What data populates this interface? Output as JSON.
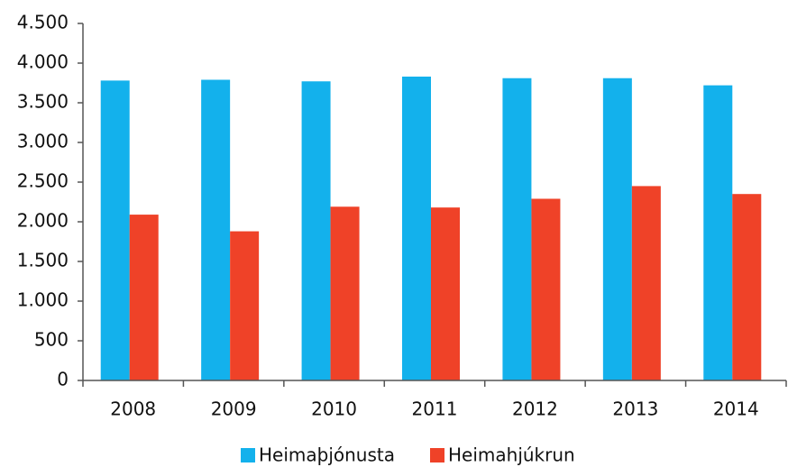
{
  "chart_data": {
    "type": "bar",
    "categories": [
      "2008",
      "2009",
      "2010",
      "2011",
      "2012",
      "2013",
      "2014"
    ],
    "series": [
      {
        "name": "Heimaþjónusta",
        "color": "#13b1ec",
        "values": [
          3780,
          3790,
          3770,
          3830,
          3810,
          3810,
          3720
        ]
      },
      {
        "name": "Heimahjúkrun",
        "color": "#ef4228",
        "values": [
          2090,
          1880,
          2190,
          2180,
          2290,
          2450,
          2350
        ]
      }
    ],
    "ylim": [
      0,
      4500
    ],
    "yticks": [
      0,
      500,
      {
        "value": 1000,
        "label": "1.000"
      },
      {
        "value": 1500,
        "label": "1.500"
      },
      {
        "value": 2000,
        "label": "2.000"
      },
      {
        "value": 2500,
        "label": "2.500"
      },
      {
        "value": 3000,
        "label": "3.000"
      },
      {
        "value": 3500,
        "label": "3.500"
      },
      {
        "value": 4000,
        "label": "4.000"
      },
      {
        "value": 4500,
        "label": "4.500"
      }
    ],
    "legend": "bottom"
  }
}
